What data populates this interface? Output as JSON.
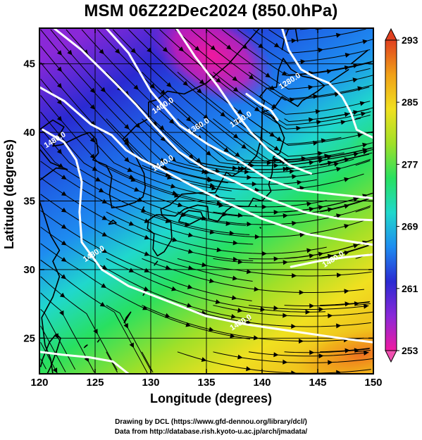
{
  "title": "MSM 06Z22Dec2024 (850.0hPa)",
  "axes": {
    "xlabel": "Longitude (degrees)",
    "ylabel": "Latitude  (degrees)",
    "x_ticks": [
      "120",
      "125",
      "130",
      "135",
      "140",
      "145",
      "150"
    ],
    "y_ticks": [
      "25",
      "30",
      "35",
      "40",
      "45"
    ],
    "xlim": [
      120,
      150
    ],
    "ylim": [
      22.4,
      47.6
    ]
  },
  "colorbar": {
    "min": 253,
    "max": 293,
    "tick_labels": [
      "293",
      "285",
      "277",
      "269",
      "261",
      "253"
    ],
    "tick_values": [
      293,
      285,
      277,
      269,
      261,
      253
    ],
    "colors": [
      "#f01aa0",
      "#8a28d8",
      "#2a2ad2",
      "#1e8cf0",
      "#20d8cc",
      "#28e060",
      "#a0e028",
      "#f0e020",
      "#f0a018",
      "#e04020"
    ]
  },
  "contours": [
    {
      "label": "1320.0",
      "lon": 138.2,
      "lat": 40.8
    },
    {
      "label": "1360.0",
      "lon": 134.4,
      "lat": 40.3
    },
    {
      "label": "1400.0",
      "lon": 131.2,
      "lat": 41.8
    },
    {
      "label": "1440.0",
      "lon": 131.2,
      "lat": 37.6
    },
    {
      "label": "1480.0",
      "lon": 121.5,
      "lat": 39.3
    },
    {
      "label": "1480.0",
      "lon": 138.2,
      "lat": 26.0
    },
    {
      "label": "1280.0",
      "lon": 142.6,
      "lat": 43.6
    },
    {
      "label": "1480.0",
      "lon": 125.0,
      "lat": 31.0
    },
    {
      "label": "1480.0",
      "lon": 146.5,
      "lat": 30.6
    }
  ],
  "credits": {
    "line1": "Drawing by DCL (https://www.gfd-dennou.org/library/dcl/)",
    "line2": "Data from http://database.rish.kyoto-u.ac.jp/arch/jmadata/"
  }
}
